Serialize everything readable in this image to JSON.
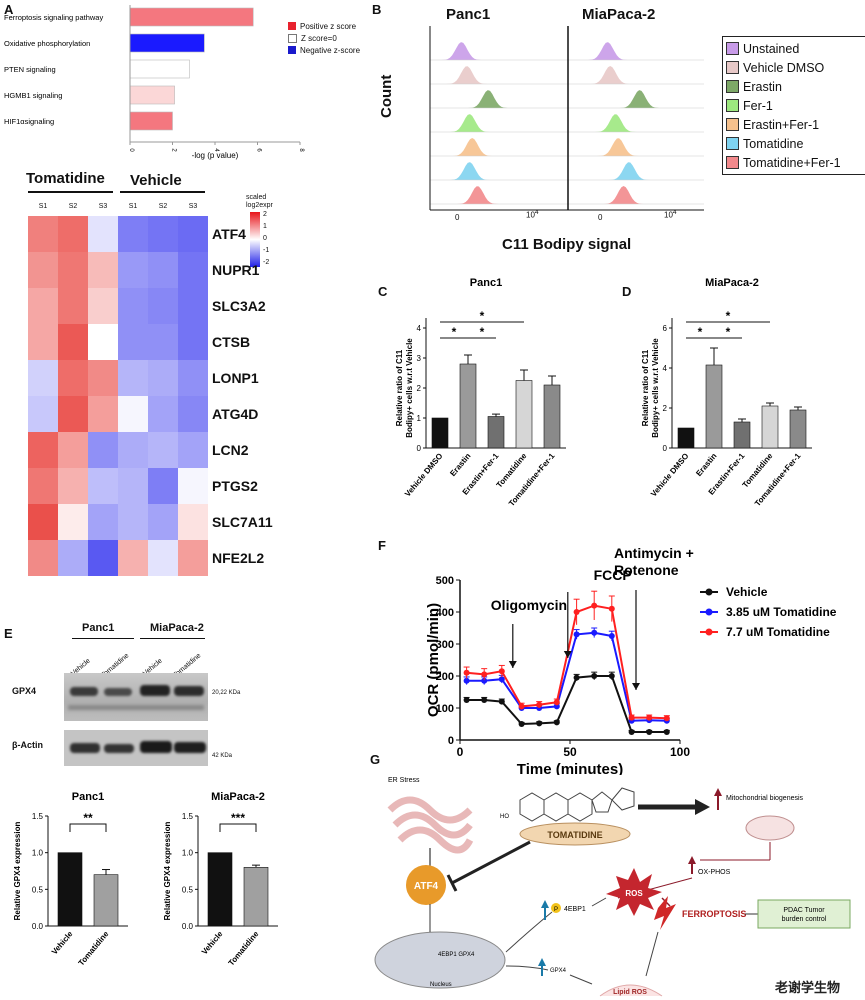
{
  "panels": {
    "A": {
      "label": "A",
      "pathways": [
        {
          "name": "Ferroptosis signaling pathway",
          "value": 5.8,
          "color": "#f4777f"
        },
        {
          "name": "Oxidative phosphorylation",
          "value": 3.5,
          "color": "#1a1aff"
        },
        {
          "name": "PTEN signaling",
          "value": 2.8,
          "color": "#ffffff"
        },
        {
          "name": "HGMB1 signaling",
          "value": 2.1,
          "color": "#fbd7d7"
        },
        {
          "name": "HIF1αsignaling",
          "value": 2.0,
          "color": "#f4777f"
        }
      ],
      "xaxis_label": "-log (p value)",
      "xticks": [
        "0",
        "2",
        "4",
        "6",
        "8"
      ],
      "legend": [
        {
          "label": "Positive z score",
          "color": "#e8222e"
        },
        {
          "label": "Z score=0",
          "color": "#ffffff"
        },
        {
          "label": "Negative z-score",
          "color": "#1a1acc"
        }
      ]
    },
    "heatmap": {
      "group1": "Tomatidine",
      "group2": "Vehicle",
      "samples": [
        "S1",
        "S2",
        "S3",
        "S1",
        "S2",
        "S3"
      ],
      "scale_title": "scaled log2expr",
      "scale_ticks": [
        "2",
        "1",
        "0",
        "-1",
        "-2"
      ],
      "genes": [
        "ATF4",
        "NUPR1",
        "SLC3A2",
        "CTSB",
        "LONP1",
        "ATG4D",
        "LCN2",
        "PTGS2",
        "SLC7A11",
        "NFE2L2"
      ],
      "values": [
        [
          1.3,
          1.5,
          -0.3,
          -1.4,
          -1.5,
          -1.6
        ],
        [
          1.1,
          1.4,
          0.7,
          -1.1,
          -1.2,
          -1.5
        ],
        [
          0.9,
          1.4,
          0.5,
          -1.2,
          -1.3,
          -1.5
        ],
        [
          0.9,
          1.7,
          0.0,
          -1.2,
          -1.2,
          -1.5
        ],
        [
          -0.5,
          1.5,
          1.2,
          -0.8,
          -0.9,
          -1.2
        ],
        [
          -0.6,
          1.7,
          1.0,
          -0.1,
          -1.0,
          -1.3
        ],
        [
          1.6,
          1.0,
          -1.2,
          -0.9,
          -0.8,
          -1.0
        ],
        [
          1.4,
          0.8,
          -0.7,
          -0.8,
          -1.4,
          -0.1
        ],
        [
          1.8,
          0.2,
          -1.0,
          -0.8,
          -1.0,
          0.3
        ],
        [
          1.2,
          -0.9,
          -1.8,
          0.8,
          -0.3,
          1.0
        ]
      ]
    },
    "B": {
      "label": "B",
      "cell_lines": [
        "Panc1",
        "MiaPaca-2"
      ],
      "ylabel": "Count",
      "xlabel": "C11 Bodipy signal",
      "tick0": "0",
      "tick4_base": "10",
      "tick4_exp": "4",
      "legend": [
        {
          "label": "Unstained",
          "color": "#c89be8"
        },
        {
          "label": "Vehicle DMSO",
          "color": "#e8c9c8"
        },
        {
          "label": "Erastin",
          "color": "#7da867"
        },
        {
          "label": "Fer-1",
          "color": "#9de87f"
        },
        {
          "label": "Erastin+Fer-1",
          "color": "#f6c18d"
        },
        {
          "label": "Tomatidine",
          "color": "#7fd3f0"
        },
        {
          "label": "Tomatidine+Fer-1",
          "color": "#f2898c"
        }
      ],
      "peaks_panc1": [
        0.22,
        0.26,
        0.42,
        0.28,
        0.3,
        0.28,
        0.34
      ],
      "peaks_mia": [
        0.28,
        0.3,
        0.52,
        0.34,
        0.36,
        0.44,
        0.4
      ]
    },
    "C": {
      "label": "C",
      "title": "Panc1",
      "ylabel": "Relative ratio of C11 Bodipy+ cells w.r.t Vehicle",
      "categories": [
        "Vehicle DMSO",
        "Erastin",
        "Erastin+Fer-1",
        "Tomatidine",
        "Tomatidine+Fer-1"
      ],
      "values": [
        1.0,
        2.8,
        1.05,
        2.25,
        2.1
      ],
      "errors": [
        0,
        0.3,
        0.08,
        0.35,
        0.3
      ],
      "colors": [
        "#111111",
        "#9a9a9a",
        "#707070",
        "#d6d6d6",
        "#8a8a8a"
      ],
      "yticks": [
        "0",
        "1",
        "2",
        "3",
        "4"
      ],
      "sig": [
        "*",
        "*",
        "*"
      ]
    },
    "D": {
      "label": "D",
      "title": "MiaPaca-2",
      "ylabel": "Relative ratio of C11 Bodipy+ cells w.r.t Vehicle",
      "categories": [
        "Vehicle DMSO",
        "Erastin",
        "Erastin+Fer-1",
        "Tomatidine",
        "Tomatidine+Fer-1"
      ],
      "values": [
        1.0,
        4.15,
        1.3,
        2.1,
        1.9
      ],
      "errors": [
        0,
        0.85,
        0.15,
        0.15,
        0.15
      ],
      "colors": [
        "#111111",
        "#9a9a9a",
        "#707070",
        "#d6d6d6",
        "#8a8a8a"
      ],
      "yticks": [
        "0",
        "2",
        "4",
        "6"
      ],
      "sig": [
        "*",
        "*",
        "*"
      ]
    },
    "E": {
      "label": "E",
      "cell_lines": [
        "Panc1",
        "MiaPaca-2"
      ],
      "lanes": [
        "Vehicle",
        "Tomatidine",
        "Vehicle",
        "Tomatidine"
      ],
      "blot1": "GPX4",
      "blot1_size": "20,22 KDa",
      "blot2": "β-Actin",
      "blot2_size": "42 KDa",
      "chart1": {
        "title": "Panc1",
        "values": [
          1.0,
          0.7
        ],
        "errors": [
          0,
          0.07
        ],
        "sig": "**"
      },
      "chart2": {
        "title": "MiaPaca-2",
        "values": [
          1.0,
          0.8
        ],
        "errors": [
          0,
          0.03
        ],
        "sig": "***"
      },
      "ylabel": "Relative GPX4 expression",
      "yticks": [
        "0.0",
        "0.5",
        "1.0",
        "1.5"
      ],
      "categories": [
        "Vehicle",
        "Tomatidine"
      ]
    },
    "F": {
      "label": "F",
      "ylabel": "OCR (pmol/min)",
      "xlabel": "Time (minutes)",
      "xticks": [
        "0",
        "50",
        "100"
      ],
      "yticks": [
        "0",
        "100",
        "200",
        "300",
        "400",
        "500"
      ],
      "annotations": [
        "Oligomycin",
        "FCCP",
        "Antimycin +",
        "Rotenone"
      ],
      "x": [
        3,
        11,
        19,
        28,
        36,
        44,
        53,
        61,
        69,
        78,
        86,
        94
      ],
      "series": [
        {
          "name": "Vehicle",
          "color": "#111111",
          "values": [
            125,
            125,
            120,
            50,
            52,
            55,
            195,
            200,
            200,
            25,
            25,
            25
          ],
          "err": [
            8,
            8,
            8,
            5,
            5,
            5,
            10,
            12,
            12,
            5,
            5,
            5
          ]
        },
        {
          "name": "3.85 uM Tomatidine",
          "color": "#1a1aff",
          "values": [
            185,
            185,
            190,
            100,
            100,
            105,
            330,
            335,
            325,
            60,
            62,
            60
          ],
          "err": [
            12,
            12,
            12,
            8,
            8,
            8,
            15,
            15,
            15,
            6,
            6,
            6
          ]
        },
        {
          "name": "7.7 uM Tomatidine",
          "color": "#ff2020",
          "values": [
            210,
            205,
            215,
            105,
            110,
            118,
            400,
            420,
            410,
            70,
            70,
            68
          ],
          "err": [
            18,
            18,
            18,
            10,
            10,
            10,
            40,
            45,
            40,
            8,
            8,
            8
          ]
        }
      ]
    },
    "G": {
      "label": "G",
      "er_stress": "ER Stress",
      "tomatidine": "TOMATIDINE",
      "atf4": "ATF4",
      "mito": "Mitochondrial biogenesis",
      "oxphos": "OX-PHOS",
      "ros": "ROS",
      "ferroptosis": "FERROPTOSIS",
      "pdac": "PDAC Tumor burden control",
      "ebp": "4EBP1",
      "nucleus_genes": "4EBP1 GPX4",
      "nucleus": "Nucleus",
      "gpx4": "GPX4",
      "lipid_ros": "Lipid ROS",
      "ho": "HO",
      "p": "P",
      "watermark": "老谢学生物"
    }
  }
}
